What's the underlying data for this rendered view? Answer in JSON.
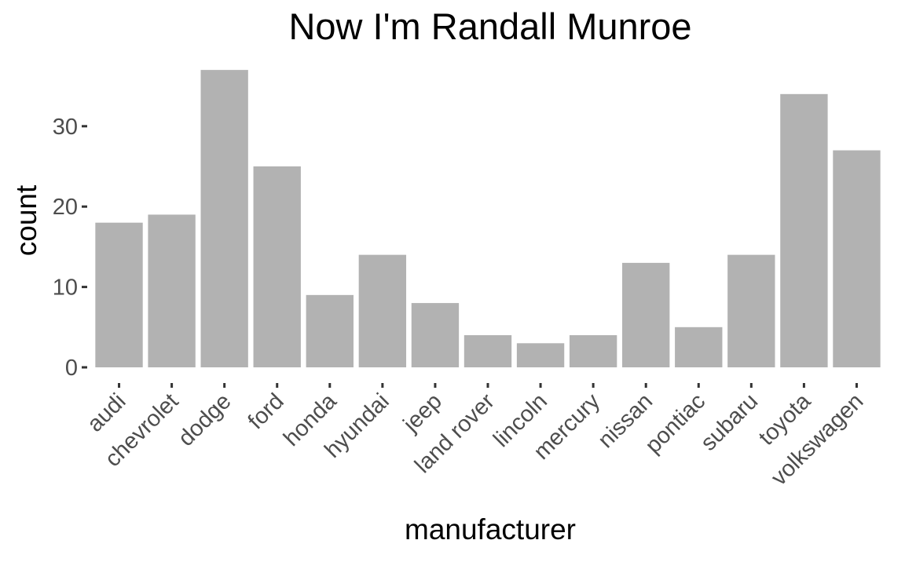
{
  "chart_data": {
    "type": "bar",
    "title": "Now I'm Randall Munroe",
    "xlabel": "manufacturer",
    "ylabel": "count",
    "ylim": [
      0,
      37.5
    ],
    "yticks": [
      0,
      10,
      20,
      30
    ],
    "grid": false,
    "legend": "none",
    "bar_color": "#b2b2b2",
    "categories": [
      "audi",
      "chevrolet",
      "dodge",
      "ford",
      "honda",
      "hyundai",
      "jeep",
      "land rover",
      "lincoln",
      "mercury",
      "nissan",
      "pontiac",
      "subaru",
      "toyota",
      "volkswagen"
    ],
    "values": [
      18,
      19,
      37,
      25,
      9,
      14,
      8,
      4,
      3,
      4,
      13,
      5,
      14,
      34,
      27
    ]
  }
}
